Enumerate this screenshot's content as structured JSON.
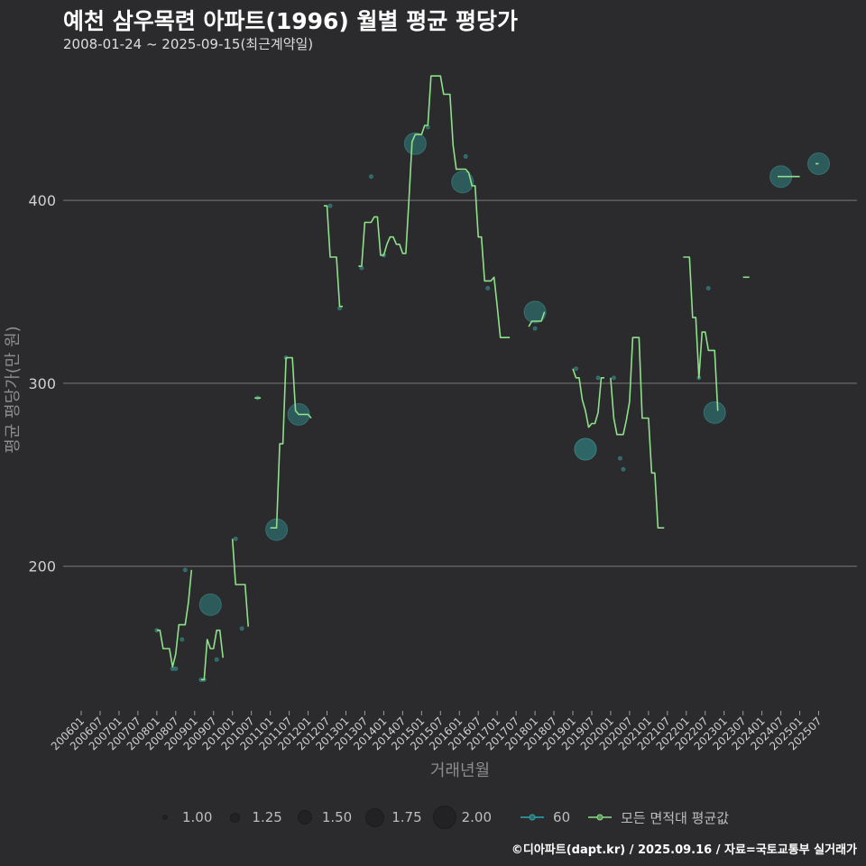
{
  "header": {
    "title": "예천 삼우목련 아파트(1996) 월별 평균 평당가",
    "subtitle": "2008-01-24 ~ 2025-09-15(최근계약일)"
  },
  "credit": "©디아파트(dapt.kr) / 2025.09.16 / 자료=국토교통부 실거래가",
  "legend": {
    "sizes": [
      {
        "label": "1.00",
        "value": 1.0
      },
      {
        "label": "1.25",
        "value": 1.25
      },
      {
        "label": "1.50",
        "value": 1.5
      },
      {
        "label": "1.75",
        "value": 1.75
      },
      {
        "label": "2.00",
        "value": 2.0
      }
    ],
    "series_60_label": "60",
    "avg_label": "모든 면적대 평균값"
  },
  "colors": {
    "background": "#2b2b2d",
    "grid": "#7a7a7a",
    "avg_line": "#8ee08a",
    "point_fill": "#2f6b6b",
    "point_stroke": "#3e8c8a",
    "series_60": "#2aa7b3"
  },
  "chart_data": {
    "type": "line",
    "title": "예천 삼우목련 아파트(1996) 월별 평균 평당가",
    "xlabel": "거래년월",
    "ylabel": "평균 평당가(만 원)",
    "ylim": [
      120,
      475
    ],
    "y_ticks": [
      200,
      300,
      400
    ],
    "x_range": [
      "2006-01",
      "2025-12"
    ],
    "x_tick_labels": [
      "200601",
      "200607",
      "200701",
      "200707",
      "200801",
      "200807",
      "200901",
      "200907",
      "201001",
      "201007",
      "201101",
      "201107",
      "201201",
      "201207",
      "201301",
      "201307",
      "201401",
      "201407",
      "201501",
      "201507",
      "201601",
      "201607",
      "201701",
      "201707",
      "201801",
      "201807",
      "201901",
      "201907",
      "202001",
      "202007",
      "202101",
      "202107",
      "202201",
      "202207",
      "202301",
      "202307",
      "202401",
      "202407",
      "202501",
      "202507"
    ],
    "avg_segments": [
      [
        [
          "2008-01",
          165
        ],
        [
          "2008-02",
          165
        ],
        [
          "2008-03",
          155
        ],
        [
          "2008-04",
          155
        ],
        [
          "2008-05",
          155
        ],
        [
          "2008-06",
          145
        ],
        [
          "2008-07",
          152
        ],
        [
          "2008-08",
          168
        ],
        [
          "2008-09",
          168
        ],
        [
          "2008-10",
          168
        ],
        [
          "2008-11",
          180
        ],
        [
          "2008-12",
          198
        ]
      ],
      [
        [
          "2009-03",
          138
        ],
        [
          "2009-04",
          138
        ],
        [
          "2009-05",
          160
        ],
        [
          "2009-06",
          155
        ],
        [
          "2009-07",
          155
        ],
        [
          "2009-08",
          165
        ],
        [
          "2009-09",
          165
        ],
        [
          "2009-10",
          150
        ]
      ],
      [
        [
          "2010-01",
          215
        ],
        [
          "2010-02",
          190
        ],
        [
          "2010-03",
          190
        ],
        [
          "2010-04",
          190
        ],
        [
          "2010-05",
          190
        ],
        [
          "2010-06",
          167
        ]
      ],
      [
        [
          "2010-08",
          292
        ],
        [
          "2010-10",
          292
        ]
      ],
      [
        [
          "2011-01",
          221
        ],
        [
          "2011-03",
          221
        ],
        [
          "2011-04",
          267
        ],
        [
          "2011-05",
          267
        ],
        [
          "2011-06",
          314
        ],
        [
          "2011-07",
          314
        ],
        [
          "2011-08",
          314
        ],
        [
          "2011-09",
          285
        ],
        [
          "2011-10",
          283
        ],
        [
          "2011-11",
          283
        ],
        [
          "2011-12",
          283
        ],
        [
          "2012-01",
          283
        ],
        [
          "2012-02",
          281
        ]
      ],
      [
        [
          "2012-06",
          397
        ],
        [
          "2012-07",
          397
        ],
        [
          "2012-08",
          369
        ],
        [
          "2012-09",
          369
        ],
        [
          "2012-10",
          369
        ],
        [
          "2012-11",
          342
        ],
        [
          "2012-12",
          342
        ]
      ],
      [
        [
          "2013-05",
          364
        ],
        [
          "2013-06",
          364
        ],
        [
          "2013-07",
          388
        ],
        [
          "2013-08",
          388
        ],
        [
          "2013-09",
          388
        ],
        [
          "2013-10",
          391
        ],
        [
          "2013-11",
          391
        ],
        [
          "2013-12",
          370
        ],
        [
          "2014-01",
          370
        ],
        [
          "2014-02",
          376
        ],
        [
          "2014-03",
          380
        ],
        [
          "2014-04",
          380
        ],
        [
          "2014-05",
          376
        ],
        [
          "2014-06",
          376
        ],
        [
          "2014-07",
          371
        ],
        [
          "2014-08",
          371
        ],
        [
          "2014-09",
          400
        ],
        [
          "2014-10",
          432
        ],
        [
          "2014-11",
          436
        ],
        [
          "2014-12",
          436
        ],
        [
          "2015-01",
          436
        ],
        [
          "2015-02",
          441
        ],
        [
          "2015-03",
          441
        ],
        [
          "2015-04",
          468
        ],
        [
          "2015-05",
          468
        ],
        [
          "2015-06",
          468
        ],
        [
          "2015-07",
          468
        ],
        [
          "2015-08",
          458
        ],
        [
          "2015-09",
          458
        ],
        [
          "2015-10",
          458
        ],
        [
          "2015-11",
          430
        ],
        [
          "2015-12",
          417
        ],
        [
          "2016-01",
          417
        ],
        [
          "2016-02",
          417
        ],
        [
          "2016-03",
          417
        ],
        [
          "2016-04",
          415
        ],
        [
          "2016-05",
          408
        ],
        [
          "2016-06",
          408
        ],
        [
          "2016-07",
          380
        ],
        [
          "2016-08",
          380
        ],
        [
          "2016-09",
          356
        ],
        [
          "2016-10",
          356
        ],
        [
          "2016-11",
          356
        ],
        [
          "2016-12",
          358
        ],
        [
          "2017-01",
          342
        ],
        [
          "2017-02",
          325
        ],
        [
          "2017-03",
          325
        ],
        [
          "2017-04",
          325
        ],
        [
          "2017-05",
          325
        ]
      ],
      [
        [
          "2017-11",
          331
        ],
        [
          "2017-12",
          334
        ],
        [
          "2018-01",
          334
        ],
        [
          "2018-02",
          334
        ],
        [
          "2018-03",
          334
        ],
        [
          "2018-04",
          339
        ]
      ],
      [
        [
          "2019-01",
          308
        ],
        [
          "2019-02",
          303
        ],
        [
          "2019-03",
          303
        ],
        [
          "2019-04",
          291
        ],
        [
          "2019-05",
          285
        ],
        [
          "2019-06",
          276
        ],
        [
          "2019-07",
          278
        ],
        [
          "2019-08",
          278
        ],
        [
          "2019-09",
          284
        ],
        [
          "2019-10",
          303
        ],
        [
          "2019-11",
          303
        ]
      ],
      [
        [
          "2020-01",
          303
        ],
        [
          "2020-02",
          281
        ],
        [
          "2020-03",
          272
        ],
        [
          "2020-04",
          272
        ],
        [
          "2020-05",
          272
        ],
        [
          "2020-06",
          280
        ],
        [
          "2020-07",
          290
        ],
        [
          "2020-08",
          325
        ],
        [
          "2020-09",
          325
        ],
        [
          "2020-10",
          325
        ],
        [
          "2020-11",
          281
        ],
        [
          "2020-12",
          281
        ],
        [
          "2021-01",
          281
        ],
        [
          "2021-02",
          251
        ],
        [
          "2021-03",
          251
        ],
        [
          "2021-04",
          221
        ],
        [
          "2021-05",
          221
        ],
        [
          "2021-06",
          221
        ]
      ],
      [
        [
          "2021-12",
          369
        ],
        [
          "2022-01",
          369
        ],
        [
          "2022-02",
          369
        ],
        [
          "2022-03",
          336
        ],
        [
          "2022-04",
          336
        ],
        [
          "2022-05",
          303
        ],
        [
          "2022-06",
          328
        ],
        [
          "2022-07",
          328
        ],
        [
          "2022-08",
          318
        ],
        [
          "2022-09",
          318
        ],
        [
          "2022-10",
          318
        ],
        [
          "2022-11",
          285
        ]
      ],
      [
        [
          "2023-07",
          358
        ],
        [
          "2023-09",
          358
        ]
      ],
      [
        [
          "2024-06",
          413
        ],
        [
          "2024-07",
          413
        ],
        [
          "2024-08",
          413
        ],
        [
          "2024-09",
          413
        ],
        [
          "2024-10",
          413
        ],
        [
          "2024-11",
          413
        ],
        [
          "2024-12",
          413
        ],
        [
          "2025-01",
          413
        ]
      ],
      [
        [
          "2025-06",
          420
        ],
        [
          "2025-07",
          420
        ]
      ]
    ],
    "points": [
      {
        "x": "2008-01",
        "y": 165,
        "size": 1.0
      },
      {
        "x": "2008-06",
        "y": 144,
        "size": 1.0
      },
      {
        "x": "2008-07",
        "y": 144,
        "size": 1.0
      },
      {
        "x": "2008-09",
        "y": 160,
        "size": 1.0
      },
      {
        "x": "2008-10",
        "y": 198,
        "size": 1.0
      },
      {
        "x": "2009-03",
        "y": 138,
        "size": 1.0
      },
      {
        "x": "2009-04",
        "y": 138,
        "size": 1.0
      },
      {
        "x": "2009-06",
        "y": 179,
        "size": 2.0
      },
      {
        "x": "2009-08",
        "y": 149,
        "size": 1.0
      },
      {
        "x": "2010-02",
        "y": 215,
        "size": 1.0
      },
      {
        "x": "2010-04",
        "y": 166,
        "size": 1.0
      },
      {
        "x": "2010-09",
        "y": 292,
        "size": 1.0
      },
      {
        "x": "2011-03",
        "y": 220,
        "size": 2.0
      },
      {
        "x": "2011-06",
        "y": 314,
        "size": 1.0
      },
      {
        "x": "2011-10",
        "y": 283,
        "size": 2.0
      },
      {
        "x": "2012-08",
        "y": 397,
        "size": 1.0
      },
      {
        "x": "2012-11",
        "y": 341,
        "size": 1.0
      },
      {
        "x": "2013-06",
        "y": 363,
        "size": 1.0
      },
      {
        "x": "2013-09",
        "y": 413,
        "size": 1.0
      },
      {
        "x": "2014-01",
        "y": 370,
        "size": 1.0
      },
      {
        "x": "2014-11",
        "y": 431,
        "size": 2.0
      },
      {
        "x": "2015-03",
        "y": 440,
        "size": 1.0
      },
      {
        "x": "2016-02",
        "y": 410,
        "size": 2.0
      },
      {
        "x": "2016-03",
        "y": 424,
        "size": 1.0
      },
      {
        "x": "2016-10",
        "y": 352,
        "size": 1.0
      },
      {
        "x": "2018-01",
        "y": 339,
        "size": 2.0
      },
      {
        "x": "2018-01",
        "y": 330,
        "size": 1.0
      },
      {
        "x": "2019-02",
        "y": 308,
        "size": 1.0
      },
      {
        "x": "2019-05",
        "y": 264,
        "size": 2.0
      },
      {
        "x": "2019-05",
        "y": 264,
        "size": 2.0
      },
      {
        "x": "2019-09",
        "y": 303,
        "size": 1.0
      },
      {
        "x": "2020-02",
        "y": 303,
        "size": 1.0
      },
      {
        "x": "2020-04",
        "y": 259,
        "size": 1.0
      },
      {
        "x": "2020-05",
        "y": 253,
        "size": 1.0
      },
      {
        "x": "2022-05",
        "y": 303,
        "size": 1.0
      },
      {
        "x": "2022-08",
        "y": 352,
        "size": 1.0
      },
      {
        "x": "2022-10",
        "y": 284,
        "size": 2.0
      },
      {
        "x": "2024-07",
        "y": 413,
        "size": 2.0
      },
      {
        "x": "2025-07",
        "y": 420,
        "size": 2.0
      }
    ]
  }
}
